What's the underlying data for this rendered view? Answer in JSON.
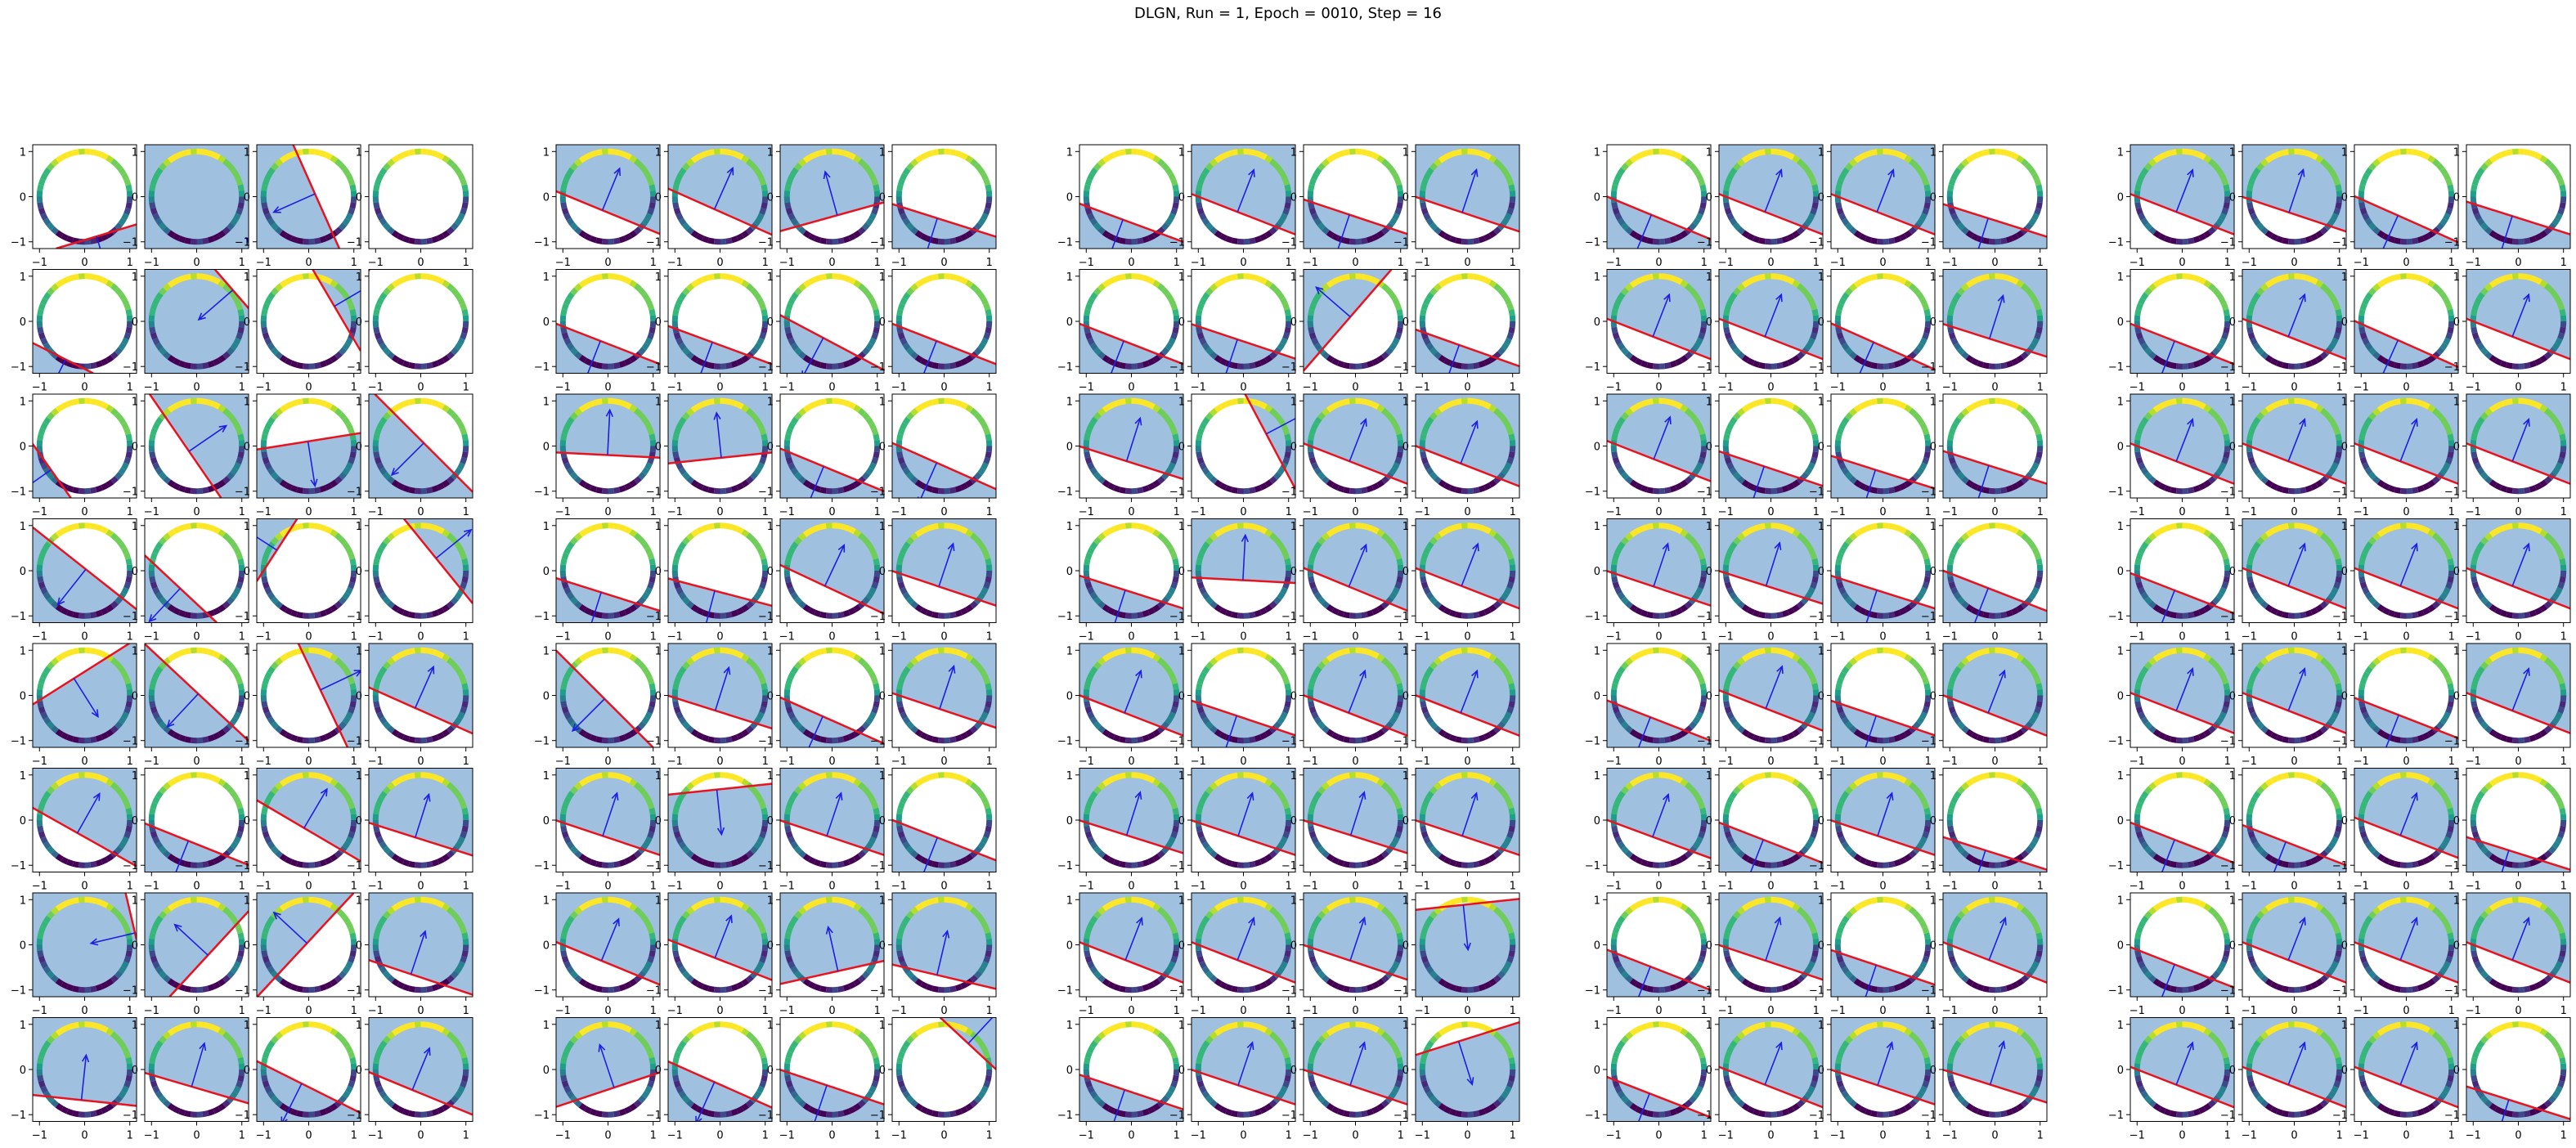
{
  "figure": {
    "title": "DLGN, Run = 1, Epoch = 0010, Step = 16"
  },
  "chart_data": {
    "type": "scatter",
    "title": "DLGN, Run = 1, Epoch = 0010, Step = 16",
    "layout": {
      "groups": 5,
      "rows": 8,
      "cols_per_group": 4
    },
    "panel": {
      "xlim": [
        -1.15,
        1.15
      ],
      "ylim": [
        -1.15,
        1.15
      ],
      "xticks": [
        -1,
        0,
        1
      ],
      "yticks": [
        -1,
        0,
        1
      ],
      "xtick_labels": [
        "−1",
        "0",
        "1"
      ],
      "ytick_labels": [
        "−1",
        "0",
        "1"
      ],
      "grid": false
    },
    "circle_points": {
      "radius": 1,
      "count": 48,
      "colormap": "viridis"
    },
    "colors": {
      "half_plane": "#8fb5d9",
      "boundary": "#e8131f",
      "arrow": "#1f1fe0"
    },
    "panels": [
      [
        [
          [
            0.3,
            -1.0,
            0.96
          ],
          [
            -0.3,
            0.25,
            -0.95
          ],
          [
            -0.9,
            -0.4,
            -0.15
          ],
          [
            -0.6,
            0.1,
            0.95
          ]
        ],
        [
          [
            -0.45,
            -0.9,
            0.95
          ],
          [
            -0.75,
            -0.65,
            -1.05
          ],
          [
            0.85,
            0.5,
            0.65
          ],
          [
            -0.55,
            0.15,
            0.8
          ]
        ],
        [
          [
            -0.85,
            -0.6,
            0.95
          ],
          [
            0.8,
            0.55,
            -0.2
          ],
          [
            0.15,
            -0.95,
            -0.1
          ],
          [
            -0.75,
            -0.75,
            -0.1
          ]
        ],
        [
          [
            -0.75,
            -0.95,
            -0.05
          ],
          [
            -0.7,
            -0.75,
            0.55
          ],
          [
            -0.85,
            0.55,
            0.85
          ],
          [
            0.8,
            0.65,
            0.45
          ]
        ],
        [
          [
            0.6,
            -0.95,
            -0.5
          ],
          [
            -0.7,
            -0.75,
            -0.05
          ],
          [
            0.95,
            0.45,
            0.3
          ],
          [
            0.4,
            0.9,
            -0.3
          ]
        ],
        [
          [
            0.45,
            0.8,
            -0.3
          ],
          [
            -0.3,
            -0.75,
            0.4
          ],
          [
            0.5,
            0.85,
            -0.2
          ],
          [
            0.3,
            0.95,
            -0.4
          ]
        ],
        [
          [
            -0.85,
            -0.2,
            -1.0
          ],
          [
            -0.65,
            0.6,
            -0.3
          ],
          [
            -0.7,
            0.65,
            0.05
          ],
          [
            0.3,
            0.9,
            -0.65
          ]
        ],
        [
          [
            0.1,
            0.95,
            -0.65
          ],
          [
            0.25,
            0.85,
            -0.35
          ],
          [
            -0.45,
            -0.9,
            0.35
          ],
          [
            0.35,
            0.85,
            -0.45
          ]
        ]
      ],
      [
        [
          [
            0.35,
            0.85,
            -0.3
          ],
          [
            0.4,
            0.9,
            -0.3
          ],
          [
            -0.25,
            0.9,
            -0.4
          ],
          [
            -0.3,
            -0.95,
            0.5
          ]
        ],
        [
          [
            -0.35,
            -0.9,
            0.45
          ],
          [
            -0.35,
            -0.95,
            0.5
          ],
          [
            -0.45,
            -0.85,
            0.4
          ],
          [
            -0.35,
            -0.9,
            0.45
          ]
        ],
        [
          [
            0.05,
            1.0,
            -0.2
          ],
          [
            -0.1,
            0.95,
            -0.25
          ],
          [
            -0.35,
            -0.85,
            0.45
          ],
          [
            -0.4,
            -0.9,
            0.4
          ]
        ],
        [
          [
            -0.3,
            -0.95,
            0.5
          ],
          [
            -0.25,
            -0.95,
            0.45
          ],
          [
            0.4,
            0.85,
            -0.35
          ],
          [
            0.3,
            0.9,
            -0.35
          ]
        ],
        [
          [
            -0.65,
            -0.65,
            0.1
          ],
          [
            0.3,
            0.95,
            -0.35
          ],
          [
            -0.4,
            -0.9,
            0.5
          ],
          [
            0.3,
            0.9,
            -0.3
          ]
        ],
        [
          [
            0.3,
            0.9,
            -0.35
          ],
          [
            0.1,
            -0.95,
            -0.65
          ],
          [
            0.3,
            0.9,
            -0.35
          ],
          [
            -0.35,
            -0.9,
            0.4
          ]
        ],
        [
          [
            0.35,
            0.85,
            -0.35
          ],
          [
            0.35,
            0.9,
            -0.3
          ],
          [
            -0.2,
            0.9,
            -0.55
          ],
          [
            0.2,
            0.85,
            -0.6
          ]
        ],
        [
          [
            -0.3,
            0.9,
            -0.4
          ],
          [
            -0.4,
            -0.9,
            0.3
          ],
          [
            -0.3,
            -0.9,
            0.35
          ],
          [
            0.65,
            0.7,
            0.75
          ]
        ]
      ],
      [
        [
          [
            -0.35,
            -0.95,
            0.55
          ],
          [
            0.35,
            0.9,
            -0.35
          ],
          [
            -0.3,
            -0.9,
            0.4
          ],
          [
            0.3,
            0.9,
            -0.35
          ]
        ],
        [
          [
            -0.35,
            -0.9,
            0.45
          ],
          [
            -0.3,
            -0.9,
            0.4
          ],
          [
            -0.75,
            0.65,
            0.15
          ],
          [
            -0.3,
            -0.85,
            0.5
          ]
        ],
        [
          [
            0.3,
            0.95,
            -0.35
          ],
          [
            0.85,
            0.45,
            0.55
          ],
          [
            0.35,
            0.9,
            -0.35
          ],
          [
            0.35,
            0.9,
            -0.4
          ]
        ],
        [
          [
            -0.3,
            -0.95,
            0.45
          ],
          [
            0.05,
            0.95,
            -0.2
          ],
          [
            0.35,
            0.85,
            -0.35
          ],
          [
            0.35,
            0.9,
            -0.35
          ]
        ],
        [
          [
            0.35,
            0.9,
            -0.4
          ],
          [
            -0.3,
            -0.9,
            0.45
          ],
          [
            0.35,
            0.9,
            -0.4
          ],
          [
            0.35,
            0.9,
            -0.4
          ]
        ],
        [
          [
            0.3,
            0.95,
            -0.35
          ],
          [
            0.3,
            0.9,
            -0.35
          ],
          [
            0.3,
            0.95,
            -0.35
          ],
          [
            0.3,
            0.9,
            -0.35
          ]
        ],
        [
          [
            0.35,
            0.9,
            -0.35
          ],
          [
            0.35,
            0.9,
            -0.35
          ],
          [
            0.3,
            0.9,
            -0.35
          ],
          [
            0.1,
            -0.95,
            -0.85
          ]
        ],
        [
          [
            -0.3,
            -0.9,
            0.45
          ],
          [
            0.3,
            0.9,
            -0.35
          ],
          [
            0.3,
            0.9,
            -0.35
          ],
          [
            0.3,
            -0.95,
            -0.65
          ]
        ]
      ],
      [
        [
          [
            -0.35,
            -0.85,
            0.4
          ],
          [
            0.35,
            0.9,
            -0.35
          ],
          [
            0.35,
            0.9,
            -0.35
          ],
          [
            -0.3,
            -0.95,
            0.5
          ]
        ],
        [
          [
            0.35,
            0.9,
            -0.35
          ],
          [
            0.35,
            0.9,
            -0.35
          ],
          [
            -0.4,
            -0.9,
            0.5
          ],
          [
            0.3,
            0.95,
            -0.4
          ]
        ],
        [
          [
            0.35,
            0.9,
            -0.3
          ],
          [
            -0.3,
            -0.9,
            0.45
          ],
          [
            -0.3,
            -0.95,
            0.55
          ],
          [
            -0.3,
            -0.95,
            0.45
          ]
        ],
        [
          [
            0.3,
            0.9,
            -0.35
          ],
          [
            0.3,
            0.95,
            -0.35
          ],
          [
            -0.3,
            -0.95,
            0.45
          ],
          [
            -0.35,
            -0.9,
            0.4
          ]
        ],
        [
          [
            -0.35,
            -0.9,
            0.5
          ],
          [
            0.35,
            0.9,
            -0.3
          ],
          [
            -0.3,
            -0.9,
            0.45
          ],
          [
            0.35,
            0.9,
            -0.4
          ]
        ],
        [
          [
            0.35,
            0.95,
            -0.4
          ],
          [
            -0.35,
            -0.9,
            0.45
          ],
          [
            0.3,
            0.9,
            -0.35
          ],
          [
            -0.3,
            -0.95,
            0.7
          ]
        ],
        [
          [
            -0.35,
            -0.9,
            0.5
          ],
          [
            0.3,
            0.9,
            -0.35
          ],
          [
            -0.3,
            -0.9,
            0.45
          ],
          [
            0.35,
            0.9,
            -0.35
          ]
        ],
        [
          [
            -0.35,
            -0.9,
            0.55
          ],
          [
            0.35,
            0.9,
            -0.35
          ],
          [
            0.3,
            0.9,
            -0.35
          ],
          [
            0.3,
            0.95,
            -0.35
          ]
        ]
      ],
      [
        [
          [
            0.35,
            0.9,
            -0.35
          ],
          [
            0.3,
            0.9,
            -0.35
          ],
          [
            -0.4,
            -0.9,
            0.45
          ],
          [
            -0.3,
            -0.95,
            0.45
          ]
        ],
        [
          [
            -0.35,
            -0.9,
            0.45
          ],
          [
            0.35,
            0.9,
            -0.35
          ],
          [
            -0.4,
            -0.9,
            0.45
          ],
          [
            0.35,
            0.9,
            -0.35
          ]
        ],
        [
          [
            0.35,
            0.9,
            -0.35
          ],
          [
            0.35,
            0.9,
            -0.35
          ],
          [
            0.35,
            0.9,
            -0.35
          ],
          [
            0.35,
            0.9,
            -0.35
          ]
        ],
        [
          [
            -0.35,
            -0.9,
            0.45
          ],
          [
            0.35,
            0.9,
            -0.35
          ],
          [
            0.35,
            0.9,
            -0.35
          ],
          [
            0.35,
            0.9,
            -0.35
          ]
        ],
        [
          [
            0.35,
            0.9,
            -0.35
          ],
          [
            0.35,
            0.9,
            -0.35
          ],
          [
            -0.35,
            -0.9,
            0.45
          ],
          [
            0.35,
            0.9,
            -0.35
          ]
        ],
        [
          [
            -0.35,
            -0.9,
            0.45
          ],
          [
            -0.35,
            -0.9,
            0.5
          ],
          [
            0.35,
            0.9,
            -0.35
          ],
          [
            -0.3,
            -0.95,
            0.7
          ]
        ],
        [
          [
            -0.35,
            -0.9,
            0.45
          ],
          [
            0.35,
            0.9,
            -0.35
          ],
          [
            0.35,
            0.9,
            -0.35
          ],
          [
            0.35,
            0.9,
            -0.35
          ]
        ],
        [
          [
            0.35,
            0.9,
            -0.35
          ],
          [
            0.35,
            0.9,
            -0.35
          ],
          [
            0.35,
            0.9,
            -0.35
          ],
          [
            -0.3,
            -0.95,
            0.7
          ]
        ]
      ]
    ]
  }
}
